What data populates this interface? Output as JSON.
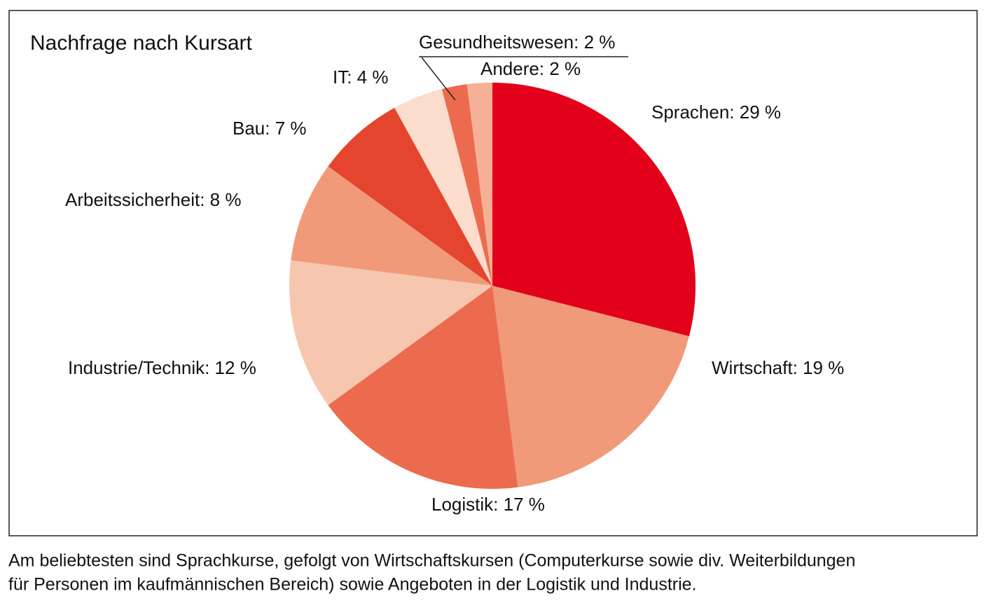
{
  "chart_data": {
    "type": "pie",
    "title": "Nachfrage nach Kursart",
    "values": [
      29,
      19,
      17,
      12,
      8,
      7,
      4,
      2,
      2
    ],
    "value_labels": [
      "Sprachen: 29 %",
      "Wirtschaft: 19 %",
      "Logistik: 17 %",
      "Industrie/Technik: 12 %",
      "Arbeitssicherheit: 8 %",
      "Bau: 7 %",
      "IT: 4 %",
      "Gesundheitswesen: 2 %",
      "Andere: 2 %"
    ],
    "colors": [
      "#e2001a",
      "#f09a7a",
      "#ec6b4e",
      "#f7c6ae",
      "#f09a7a",
      "#e5452f",
      "#fbdccd",
      "#ec6b4e",
      "#f5b097"
    ]
  },
  "caption": [
    "Am beliebtesten sind Sprachkurse, gefolgt von Wirtschaftskursen (Computerkurse sowie div. Weiterbildungen",
    "für Personen im kaufmännischen Bereich) sowie Angeboten in der Logistik und Industrie."
  ]
}
